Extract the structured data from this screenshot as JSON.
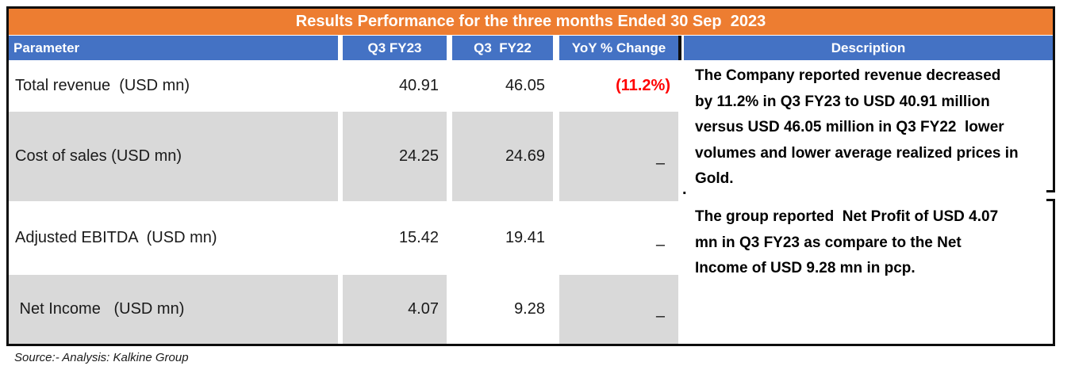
{
  "colors": {
    "title_bar": "#ED7D31",
    "header_row": "#4472C4",
    "row_shading": "#D9D9D9",
    "negative_value": "#FF0000",
    "border": "#0d0d0d"
  },
  "table": {
    "title": "Results Performance for the three months Ended 30 Sep  2023",
    "columns": [
      "Parameter",
      "Q3 FY23",
      "Q3  FY22",
      "YoY % Change",
      "Description"
    ],
    "rows": [
      {
        "parameter": "Total revenue  (USD mn)",
        "q3_fy23": "40.91",
        "q3_fy22": "46.05",
        "yoy_change": "(11.2%)"
      },
      {
        "parameter": "Cost of sales (USD mn)",
        "q3_fy23": "24.25",
        "q3_fy22": "24.69",
        "yoy_change": "–"
      },
      {
        "parameter": "Adjusted EBITDA  (USD mn)",
        "q3_fy23": "15.42",
        "q3_fy22": "19.41",
        "yoy_change": "–"
      },
      {
        "parameter": " Net Income   (USD mn)",
        "q3_fy23": "4.07",
        "q3_fy22": "9.28",
        "yoy_change": "–"
      }
    ],
    "descriptions": [
      {
        "lines": [
          "The Company reported revenue decreased",
          "by 11.2% in Q3 FY23 to USD 40.91 million",
          "versus USD 46.05 million in Q3 FY22  lower",
          "volumes and lower average realized prices in",
          "Gold."
        ]
      },
      {
        "lines": [
          "The group reported  Net Profit of USD 4.07",
          "mn in Q3 FY23 as compare to the Net",
          "Income of USD 9.28 mn in pcp."
        ]
      }
    ],
    "stray_period": "."
  },
  "source_note": "Source:- Analysis: Kalkine Group"
}
